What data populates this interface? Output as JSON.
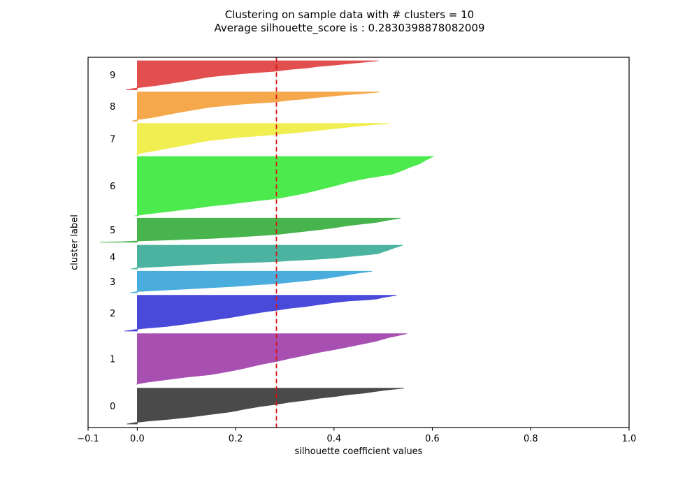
{
  "chart_data": {
    "type": "area",
    "variant": "silhouette_plot",
    "title": "Clustering on sample data with # clusters = 10",
    "subtitle": "Average silhouette_score is : 0.2830398878082009",
    "xlabel": "silhouette coefficient values",
    "ylabel": "cluster label",
    "xlim": [
      -0.1,
      1.0
    ],
    "xtick_values": [
      -0.1,
      0.0,
      0.2,
      0.4,
      0.6,
      0.8,
      1.0
    ],
    "xtick_labels": [
      "−0.1",
      "0.0",
      "0.2",
      "0.4",
      "0.6",
      "0.8",
      "1.0"
    ],
    "grid": false,
    "legend": false,
    "n_clusters": 10,
    "average_silhouette_score": 0.2830398878082009,
    "avg_line": {
      "value": 0.283,
      "color": "#d81414",
      "style": "dashed"
    },
    "clusters": [
      {
        "label": "0",
        "color": "#4a4a4a",
        "band_top": 0.8938,
        "band_bottom": 0.9906,
        "min": -0.021,
        "max": 0.542,
        "profile": [
          [
            0,
            -0.021
          ],
          [
            0.04,
            -0.005
          ],
          [
            0.08,
            0.02
          ],
          [
            0.14,
            0.07
          ],
          [
            0.2,
            0.11
          ],
          [
            0.27,
            0.149
          ],
          [
            0.34,
            0.19
          ],
          [
            0.42,
            0.22
          ],
          [
            0.49,
            0.25
          ],
          [
            0.55,
            0.283
          ],
          [
            0.61,
            0.31
          ],
          [
            0.66,
            0.34
          ],
          [
            0.72,
            0.37
          ],
          [
            0.77,
            0.404
          ],
          [
            0.82,
            0.43
          ],
          [
            0.86,
            0.46
          ],
          [
            0.9,
            0.48
          ],
          [
            0.94,
            0.5
          ],
          [
            0.97,
            0.52
          ],
          [
            1,
            0.542
          ]
        ]
      },
      {
        "label": "1",
        "color": "#a750b2",
        "band_top": 0.7466,
        "band_bottom": 0.883,
        "min": -0.003,
        "max": 0.548,
        "profile": [
          [
            0,
            -0.003
          ],
          [
            0.04,
            0.02
          ],
          [
            0.09,
            0.06
          ],
          [
            0.14,
            0.1
          ],
          [
            0.19,
            0.149
          ],
          [
            0.26,
            0.19
          ],
          [
            0.32,
            0.22
          ],
          [
            0.39,
            0.25
          ],
          [
            0.45,
            0.283
          ],
          [
            0.51,
            0.31
          ],
          [
            0.57,
            0.34
          ],
          [
            0.63,
            0.37
          ],
          [
            0.69,
            0.404
          ],
          [
            0.74,
            0.43
          ],
          [
            0.78,
            0.45
          ],
          [
            0.82,
            0.47
          ],
          [
            0.86,
            0.489
          ],
          [
            0.92,
            0.51
          ],
          [
            1,
            0.548
          ]
        ]
      },
      {
        "label": "2",
        "color": "#4a4ada",
        "band_top": 0.6428,
        "band_bottom": 0.7396,
        "min": -0.026,
        "max": 0.527,
        "profile": [
          [
            0,
            -0.026
          ],
          [
            0.04,
            -0.005
          ],
          [
            0.07,
            0.01
          ],
          [
            0.13,
            0.06
          ],
          [
            0.2,
            0.1
          ],
          [
            0.3,
            0.149
          ],
          [
            0.38,
            0.19
          ],
          [
            0.45,
            0.22
          ],
          [
            0.52,
            0.25
          ],
          [
            0.58,
            0.283
          ],
          [
            0.64,
            0.31
          ],
          [
            0.68,
            0.34
          ],
          [
            0.74,
            0.37
          ],
          [
            0.8,
            0.404
          ],
          [
            0.84,
            0.43
          ],
          [
            0.875,
            0.47
          ],
          [
            0.9,
            0.489
          ],
          [
            0.94,
            0.5
          ],
          [
            1,
            0.527
          ]
        ]
      },
      {
        "label": "3",
        "color": "#4badde",
        "band_top": 0.5779,
        "band_bottom": 0.6358,
        "min": -0.014,
        "max": 0.477,
        "profile": [
          [
            0,
            -0.014
          ],
          [
            0.05,
            0.0
          ],
          [
            0.1,
            0.04
          ],
          [
            0.16,
            0.09
          ],
          [
            0.23,
            0.149
          ],
          [
            0.28,
            0.19
          ],
          [
            0.33,
            0.22
          ],
          [
            0.38,
            0.25
          ],
          [
            0.42,
            0.283
          ],
          [
            0.48,
            0.31
          ],
          [
            0.55,
            0.34
          ],
          [
            0.62,
            0.37
          ],
          [
            0.74,
            0.404
          ],
          [
            0.82,
            0.425
          ],
          [
            0.9,
            0.445
          ],
          [
            1,
            0.477
          ]
        ]
      },
      {
        "label": "4",
        "color": "#4bb3a0",
        "band_top": 0.5075,
        "band_bottom": 0.5717,
        "min": -0.013,
        "max": 0.54,
        "profile": [
          [
            0,
            -0.013
          ],
          [
            0.05,
            0.0
          ],
          [
            0.09,
            0.04
          ],
          [
            0.14,
            0.09
          ],
          [
            0.18,
            0.12
          ],
          [
            0.21,
            0.149
          ],
          [
            0.26,
            0.21
          ],
          [
            0.31,
            0.283
          ],
          [
            0.35,
            0.31
          ],
          [
            0.4,
            0.36
          ],
          [
            0.46,
            0.404
          ],
          [
            0.52,
            0.43
          ],
          [
            0.58,
            0.46
          ],
          [
            0.64,
            0.489
          ],
          [
            0.72,
            0.5
          ],
          [
            0.8,
            0.512
          ],
          [
            0.88,
            0.522
          ],
          [
            1,
            0.54
          ]
        ]
      },
      {
        "label": "5",
        "color": "#48b44e",
        "band_top": 0.4345,
        "band_bottom": 0.4994,
        "min": -0.075,
        "max": 0.535,
        "profile": [
          [
            0,
            -0.075
          ],
          [
            0.02,
            -0.03
          ],
          [
            0.05,
            0.0
          ],
          [
            0.08,
            0.05
          ],
          [
            0.11,
            0.09
          ],
          [
            0.155,
            0.149
          ],
          [
            0.2,
            0.19
          ],
          [
            0.25,
            0.23
          ],
          [
            0.32,
            0.283
          ],
          [
            0.38,
            0.31
          ],
          [
            0.45,
            0.34
          ],
          [
            0.52,
            0.37
          ],
          [
            0.61,
            0.404
          ],
          [
            0.68,
            0.425
          ],
          [
            0.75,
            0.455
          ],
          [
            0.83,
            0.489
          ],
          [
            0.9,
            0.505
          ],
          [
            1,
            0.535
          ]
        ]
      },
      {
        "label": "6",
        "color": "#4cea4c",
        "band_top": 0.2679,
        "band_bottom": 0.4283,
        "min": -0.005,
        "max": 0.602,
        "profile": [
          [
            0,
            -0.005
          ],
          [
            0.03,
            0.02
          ],
          [
            0.06,
            0.05
          ],
          [
            0.1,
            0.09
          ],
          [
            0.13,
            0.12
          ],
          [
            0.165,
            0.149
          ],
          [
            0.2,
            0.19
          ],
          [
            0.23,
            0.22
          ],
          [
            0.26,
            0.25
          ],
          [
            0.29,
            0.283
          ],
          [
            0.33,
            0.31
          ],
          [
            0.38,
            0.34
          ],
          [
            0.44,
            0.37
          ],
          [
            0.51,
            0.404
          ],
          [
            0.57,
            0.43
          ],
          [
            0.63,
            0.465
          ],
          [
            0.7,
            0.518
          ],
          [
            0.76,
            0.538
          ],
          [
            0.82,
            0.555
          ],
          [
            0.88,
            0.575
          ],
          [
            0.93,
            0.585
          ],
          [
            1,
            0.602
          ]
        ]
      },
      {
        "label": "7",
        "color": "#f1ee52",
        "band_top": 0.1787,
        "band_bottom": 0.2636,
        "min": -0.004,
        "max": 0.512,
        "profile": [
          [
            0,
            -0.004
          ],
          [
            0.06,
            0.01
          ],
          [
            0.14,
            0.04
          ],
          [
            0.22,
            0.065
          ],
          [
            0.32,
            0.1
          ],
          [
            0.4,
            0.125
          ],
          [
            0.46,
            0.149
          ],
          [
            0.56,
            0.21
          ],
          [
            0.62,
            0.26
          ],
          [
            0.65,
            0.283
          ],
          [
            0.7,
            0.32
          ],
          [
            0.75,
            0.35
          ],
          [
            0.8,
            0.38
          ],
          [
            0.85,
            0.41
          ],
          [
            0.9,
            0.44
          ],
          [
            0.95,
            0.475
          ],
          [
            1,
            0.512
          ]
        ]
      },
      {
        "label": "8",
        "color": "#f6a84c",
        "band_top": 0.0938,
        "band_bottom": 0.1723,
        "min": -0.01,
        "max": 0.493,
        "profile": [
          [
            0,
            -0.01
          ],
          [
            0.05,
            0.0
          ],
          [
            0.12,
            0.03
          ],
          [
            0.22,
            0.06
          ],
          [
            0.3,
            0.085
          ],
          [
            0.4,
            0.12
          ],
          [
            0.48,
            0.149
          ],
          [
            0.545,
            0.19
          ],
          [
            0.58,
            0.21
          ],
          [
            0.66,
            0.283
          ],
          [
            0.72,
            0.31
          ],
          [
            0.76,
            0.34
          ],
          [
            0.82,
            0.37
          ],
          [
            0.86,
            0.4
          ],
          [
            0.9,
            0.42
          ],
          [
            0.94,
            0.455
          ],
          [
            1,
            0.493
          ]
        ]
      },
      {
        "label": "9",
        "color": "#e14f4f",
        "band_top": 0.0094,
        "band_bottom": 0.0877,
        "min": -0.023,
        "max": 0.49,
        "profile": [
          [
            0,
            -0.023
          ],
          [
            0.05,
            -0.005
          ],
          [
            0.08,
            0.005
          ],
          [
            0.15,
            0.04
          ],
          [
            0.28,
            0.09
          ],
          [
            0.38,
            0.125
          ],
          [
            0.45,
            0.149
          ],
          [
            0.55,
            0.21
          ],
          [
            0.64,
            0.283
          ],
          [
            0.7,
            0.31
          ],
          [
            0.75,
            0.345
          ],
          [
            0.8,
            0.365
          ],
          [
            0.85,
            0.4
          ],
          [
            0.9,
            0.43
          ],
          [
            0.95,
            0.46
          ],
          [
            1,
            0.49
          ]
        ]
      }
    ]
  }
}
